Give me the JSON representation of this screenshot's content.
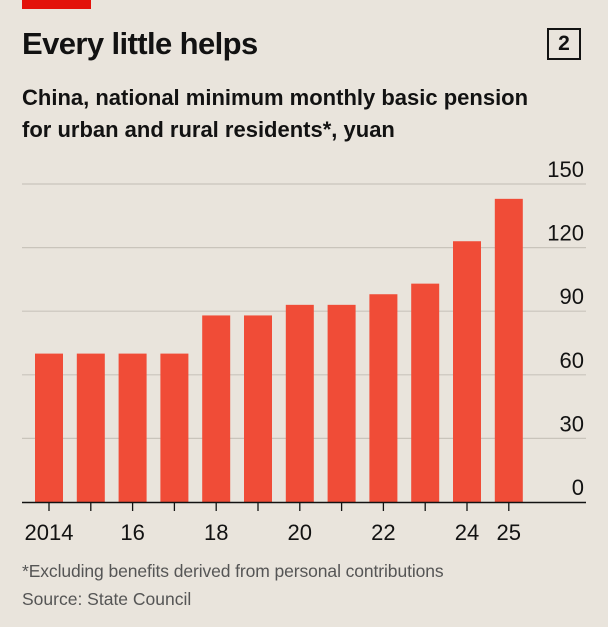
{
  "header": {
    "title": "Every little helps",
    "chart_number": "2",
    "subtitle_line1": "China, national minimum monthly basic pension",
    "subtitle_line2": "for urban and rural residents*, yuan"
  },
  "footer": {
    "footnote": "*Excluding benefits derived from personal contributions",
    "source": "Source: State Council"
  },
  "colors": {
    "background": "#e9e4dc",
    "bar": "#f04c37",
    "grid": "#c9c4bb",
    "axis": "#121212",
    "brand_red": "#e3120b"
  },
  "chart_data": {
    "type": "bar",
    "title": "Every little helps",
    "subtitle": "China, national minimum monthly basic pension for urban and rural residents*, yuan",
    "xlabel": "",
    "ylabel": "yuan",
    "categories": [
      "2014",
      "2015",
      "2016",
      "2017",
      "2018",
      "2019",
      "2020",
      "2021",
      "2022",
      "2023",
      "2024",
      "2025"
    ],
    "x_tick_labels": [
      "2014",
      "",
      "16",
      "",
      "18",
      "",
      "20",
      "",
      "22",
      "",
      "24",
      "25"
    ],
    "values": [
      70,
      70,
      70,
      70,
      88,
      88,
      93,
      93,
      98,
      103,
      123,
      143
    ],
    "ylim": [
      0,
      150
    ],
    "yticks": [
      "0",
      "30",
      "60",
      "90",
      "120",
      "150"
    ],
    "ytick_values": [
      0,
      30,
      60,
      90,
      120,
      150
    ],
    "grid": true,
    "y_axis_side": "right"
  }
}
